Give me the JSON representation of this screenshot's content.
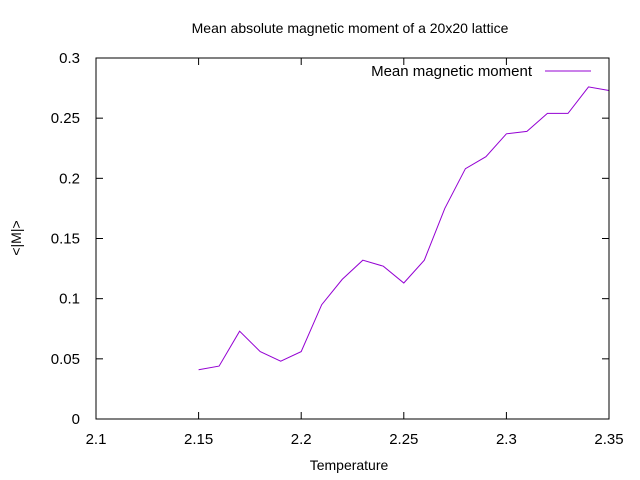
{
  "chart_data": {
    "type": "line",
    "title": "Mean absolute magnetic moment of a 20x20 lattice",
    "xlabel": "Temperature",
    "ylabel": "<|M|>",
    "xlim": [
      2.1,
      2.35
    ],
    "ylim": [
      0,
      0.3
    ],
    "xticks": [
      "2.1",
      "2.15",
      "2.2",
      "2.25",
      "2.3",
      "2.35"
    ],
    "yticks": [
      "0",
      "0.05",
      "0.1",
      "0.15",
      "0.2",
      "0.25",
      "0.3"
    ],
    "grid": false,
    "legend_position": "top-right",
    "series": [
      {
        "name": "Mean magnetic moment",
        "color": "#9400d3",
        "x": [
          2.15,
          2.16,
          2.17,
          2.18,
          2.19,
          2.2,
          2.21,
          2.22,
          2.23,
          2.24,
          2.25,
          2.26,
          2.27,
          2.28,
          2.29,
          2.3,
          2.31,
          2.32,
          2.33,
          2.34,
          2.35
        ],
        "y": [
          0.041,
          0.044,
          0.073,
          0.056,
          0.048,
          0.056,
          0.095,
          0.116,
          0.132,
          0.127,
          0.113,
          0.132,
          0.175,
          0.208,
          0.218,
          0.237,
          0.239,
          0.254,
          0.254,
          0.276,
          0.273
        ]
      }
    ]
  }
}
